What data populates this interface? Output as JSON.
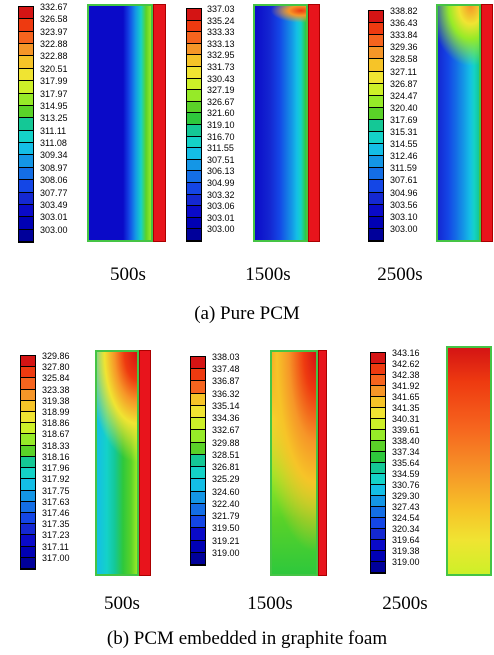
{
  "captions": {
    "pure": "(a) Pure PCM",
    "foam": "(b) PCM embedded in graphite foam"
  },
  "rows": [
    {
      "panels": [
        {
          "time": "500s",
          "legend": [
            "332.67",
            "326.58",
            "323.97",
            "322.88",
            "322.88",
            "320.51",
            "317.99",
            "317.97",
            "314.95",
            "313.25",
            "311.11",
            "311.08",
            "309.34",
            "308.97",
            "308.06",
            "307.77",
            "303.49",
            "303.01",
            "303.00"
          ]
        },
        {
          "time": "1500s",
          "legend": [
            "337.03",
            "335.24",
            "333.33",
            "333.13",
            "332.95",
            "331.73",
            "330.43",
            "327.19",
            "326.67",
            "321.60",
            "319.10",
            "316.70",
            "311.55",
            "307.51",
            "306.13",
            "304.99",
            "303.32",
            "303.06",
            "303.01",
            "303.00"
          ]
        },
        {
          "time": "2500s",
          "legend": [
            "338.82",
            "336.43",
            "333.84",
            "329.36",
            "328.58",
            "327.11",
            "326.87",
            "324.47",
            "320.40",
            "317.69",
            "315.31",
            "314.55",
            "312.46",
            "311.59",
            "307.61",
            "304.96",
            "303.56",
            "303.10",
            "303.00"
          ]
        }
      ]
    },
    {
      "panels": [
        {
          "time": "500s",
          "legend": [
            "329.86",
            "327.80",
            "325.84",
            "323.38",
            "319.38",
            "318.99",
            "318.86",
            "318.67",
            "318.33",
            "318.16",
            "317.96",
            "317.92",
            "317.75",
            "317.63",
            "317.46",
            "317.35",
            "317.23",
            "317.11",
            "317.00"
          ]
        },
        {
          "time": "1500s",
          "legend": [
            "338.03",
            "337.48",
            "336.87",
            "336.32",
            "335.14",
            "334.36",
            "332.67",
            "329.88",
            "328.51",
            "326.81",
            "325.29",
            "324.60",
            "322.40",
            "321.79",
            "319.50",
            "319.21",
            "319.00"
          ]
        },
        {
          "time": "2500s",
          "legend": [
            "343.16",
            "342.62",
            "342.38",
            "341.92",
            "341.65",
            "341.35",
            "340.31",
            "339.61",
            "338.40",
            "337.34",
            "335.64",
            "334.59",
            "330.76",
            "329.30",
            "327.43",
            "324.54",
            "320.34",
            "319.64",
            "319.38",
            "319.00"
          ]
        }
      ]
    }
  ],
  "palette": [
    "#d41414",
    "#ee3a10",
    "#f6641e",
    "#f69628",
    "#f6c428",
    "#f0e432",
    "#cdf028",
    "#96ea28",
    "#5ad228",
    "#2ec83c",
    "#14c896",
    "#14d2c8",
    "#14bee6",
    "#1496e6",
    "#146ee6",
    "#1446e6",
    "#1428d2",
    "#0a0ac8",
    "#0000b4",
    "#00009a"
  ]
}
